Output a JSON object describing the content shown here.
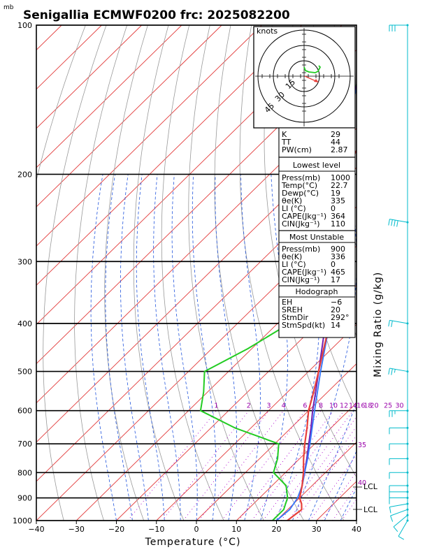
{
  "title": "Senigallia ECMWF0200  frc: 2025082200",
  "unit_mb": "mb",
  "x_axis_label": "Temperature (°C)",
  "right_axis_label": "Mixing Ratio (g/kg)",
  "hodograph_unit": "knots",
  "hodograph_rings": [
    "15",
    "30",
    "45"
  ],
  "mixing_ratio_labels": [
    "1",
    "2",
    "3",
    "4",
    "6",
    "8",
    "10",
    "12",
    "14",
    "16",
    "18",
    "20",
    "25",
    "30"
  ],
  "mixing_ratio_side_labels": [
    "35",
    "40"
  ],
  "lcl_labels": [
    "LCL",
    "LCL"
  ],
  "indices": {
    "top": [
      [
        "K",
        "29"
      ],
      [
        "TT",
        "44"
      ],
      [
        "PW(cm)",
        "2.87"
      ]
    ],
    "lowest_header": "Lowest level",
    "lowest": [
      [
        "Press(mb)",
        "1000"
      ],
      [
        "Temp(°C)",
        "22.7"
      ],
      [
        "Dewp(°C)",
        "19"
      ],
      [
        "θe(K)",
        "335"
      ],
      [
        "LI (°C)",
        "0"
      ],
      [
        "CAPE(Jkg⁻¹)",
        "364"
      ],
      [
        "CIN(Jkg⁻¹)",
        "110"
      ]
    ],
    "mu_header": "Most Unstable",
    "mu": [
      [
        "Press(mb)",
        "900"
      ],
      [
        "θe(K)",
        "336"
      ],
      [
        "LI (°C)",
        "0"
      ],
      [
        "CAPE(Jkg⁻¹)",
        "465"
      ],
      [
        "CIN(Jkg⁻¹)",
        "17"
      ]
    ],
    "hodo_header": "Hodograph",
    "hodo": [
      [
        "EH",
        "−6"
      ],
      [
        "SREH",
        "20"
      ],
      [
        "StmDir",
        "292°"
      ],
      [
        "StmSpd(kt)",
        "14"
      ]
    ]
  },
  "colors": {
    "temperature": "#e8403a",
    "dewpoint": "#22cc22",
    "parcel": "#7020b0",
    "virtual": "#3377ff",
    "isotherm": "#e23a3a",
    "dry_adiabat": "#999999",
    "moist_adiabat": "#2255dd",
    "mixing_ratio": "#aa00cc",
    "wind": "#00bbcc"
  },
  "chart_data": {
    "type": "skewt",
    "x_axis_ticks": [
      -40,
      -30,
      -20,
      -10,
      0,
      10,
      20,
      30,
      40
    ],
    "pressure_ticks": [
      100,
      200,
      300,
      400,
      500,
      600,
      700,
      800,
      900,
      1000
    ],
    "xlim": [
      -40,
      40
    ],
    "plim": [
      1000,
      100
    ],
    "temperature": [
      [
        1000,
        22.7
      ],
      [
        950,
        23.5
      ],
      [
        925,
        22
      ],
      [
        900,
        20
      ],
      [
        850,
        17.5
      ],
      [
        800,
        14.5
      ],
      [
        750,
        11
      ],
      [
        700,
        7.5
      ],
      [
        650,
        4
      ],
      [
        600,
        0
      ],
      [
        550,
        -3.5
      ],
      [
        500,
        -7.5
      ],
      [
        450,
        -12
      ],
      [
        400,
        -17
      ],
      [
        350,
        -23
      ],
      [
        300,
        -30.5
      ],
      [
        250,
        -40
      ],
      [
        200,
        -52
      ],
      [
        150,
        -58
      ],
      [
        100,
        -62
      ]
    ],
    "dewpoint": [
      [
        1000,
        19
      ],
      [
        950,
        19
      ],
      [
        925,
        18
      ],
      [
        900,
        17
      ],
      [
        850,
        13.5
      ],
      [
        800,
        7
      ],
      [
        750,
        4.5
      ],
      [
        700,
        1
      ],
      [
        650,
        -14
      ],
      [
        600,
        -27
      ],
      [
        550,
        -31
      ],
      [
        500,
        -36
      ],
      [
        450,
        -31
      ],
      [
        400,
        -27
      ],
      [
        300,
        -33
      ],
      [
        250,
        -39
      ],
      [
        200,
        -52
      ],
      [
        150,
        -67
      ],
      [
        100,
        -80
      ]
    ],
    "parcel": [
      [
        900,
        20
      ],
      [
        850,
        17.5
      ],
      [
        800,
        14.8
      ],
      [
        750,
        11.8
      ],
      [
        700,
        8.5
      ],
      [
        650,
        5
      ],
      [
        600,
        1
      ],
      [
        550,
        -3
      ],
      [
        500,
        -7.5
      ],
      [
        400,
        -18
      ],
      [
        300,
        -32
      ],
      [
        200,
        -52
      ],
      [
        150,
        -66
      ],
      [
        100,
        -82
      ]
    ],
    "virtual": [
      [
        1000,
        20
      ],
      [
        950,
        20.5
      ],
      [
        900,
        19.5
      ],
      [
        850,
        17.5
      ],
      [
        800,
        14.8
      ],
      [
        750,
        12
      ],
      [
        700,
        8.8
      ],
      [
        600,
        1.5
      ],
      [
        500,
        -7
      ],
      [
        400,
        -17
      ],
      [
        300,
        -31
      ],
      [
        200,
        -52
      ],
      [
        150,
        -66
      ],
      [
        100,
        -81
      ]
    ],
    "wind_barbs": [
      [
        1000,
        210,
        10
      ],
      [
        975,
        230,
        10
      ],
      [
        950,
        250,
        10
      ],
      [
        925,
        260,
        10
      ],
      [
        900,
        270,
        10
      ],
      [
        875,
        270,
        10
      ],
      [
        850,
        270,
        10
      ],
      [
        800,
        270,
        10
      ],
      [
        750,
        270,
        10
      ],
      [
        700,
        270,
        10
      ],
      [
        650,
        270,
        10
      ],
      [
        600,
        270,
        15
      ],
      [
        500,
        280,
        15
      ],
      [
        400,
        280,
        20
      ],
      [
        250,
        280,
        40
      ],
      [
        100,
        270,
        30
      ]
    ]
  }
}
